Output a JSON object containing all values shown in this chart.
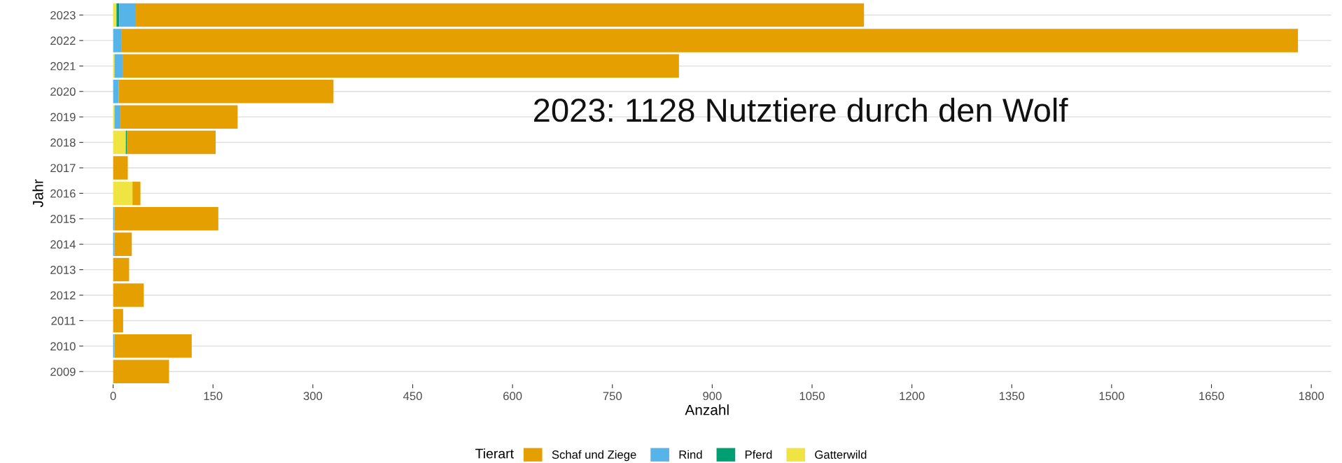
{
  "chart_data": {
    "type": "bar",
    "orientation": "horizontal",
    "stacked": true,
    "categories": [
      "2023",
      "2022",
      "2021",
      "2020",
      "2019",
      "2018",
      "2017",
      "2016",
      "2015",
      "2014",
      "2013",
      "2012",
      "2011",
      "2010",
      "2009"
    ],
    "series": [
      {
        "name": "Gatterwild",
        "color": "#f0e442",
        "values": [
          5,
          0,
          2,
          0,
          2,
          19,
          0,
          29,
          0,
          0,
          0,
          0,
          0,
          0,
          0
        ]
      },
      {
        "name": "Pferd",
        "color": "#009e73",
        "values": [
          4,
          0,
          0,
          0,
          0,
          2,
          0,
          0,
          0,
          0,
          0,
          0,
          0,
          0,
          0
        ]
      },
      {
        "name": "Rind",
        "color": "#56b4e9",
        "values": [
          25,
          12,
          12,
          8,
          9,
          0,
          0,
          0,
          2,
          2,
          0,
          0,
          0,
          2,
          0
        ]
      },
      {
        "name": "Schaf und Ziege",
        "color": "#e69f00",
        "values": [
          1094,
          1768,
          836,
          323,
          176,
          133,
          22,
          12,
          156,
          26,
          24,
          46,
          15,
          116,
          84
        ]
      }
    ],
    "xlabel": "Anzahl",
    "ylabel": "Jahr",
    "legend_title": "Tierart",
    "xlim": [
      -45,
      1830
    ],
    "xticks": [
      0,
      150,
      300,
      450,
      600,
      750,
      900,
      1050,
      1200,
      1350,
      1500,
      1650,
      1800
    ],
    "grid": "y",
    "legend": "bottom",
    "annotations": [
      "2023: 1128 Nutztiere durch den Wolf"
    ]
  }
}
